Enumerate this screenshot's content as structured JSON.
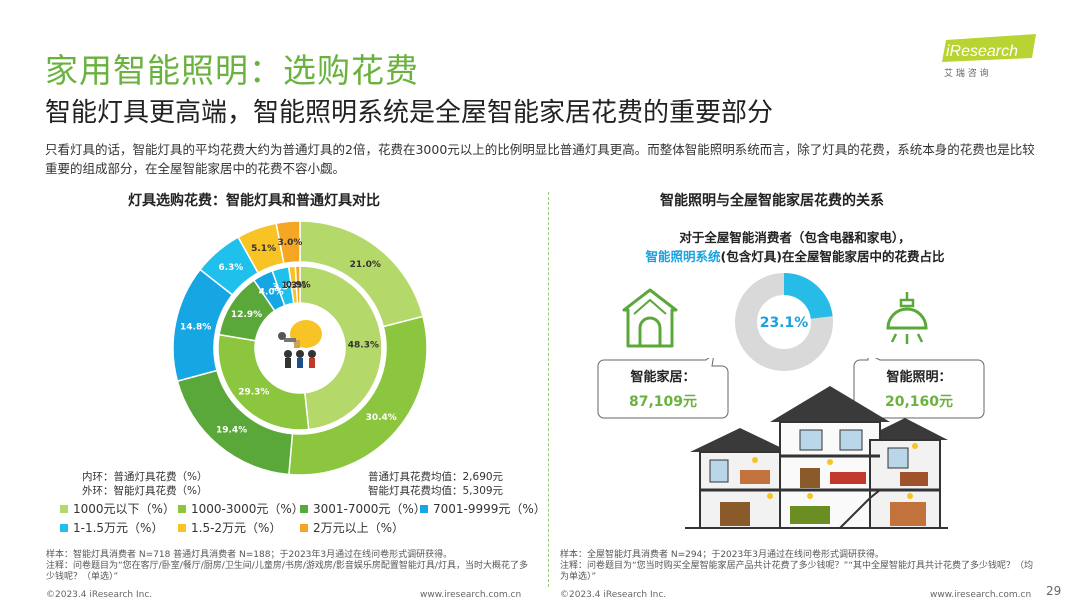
{
  "header": {
    "title": "家用智能照明：选购花费",
    "subtitle": "智能灯具更高端，智能照明系统是全屋智能家居花费的重要部分",
    "intro": "只看灯具的话，智能灯具的平均花费大约为普通灯具的2倍，花费在3000元以上的比例明显比普通灯具更高。而整体智能照明系统而言，除了灯具的花费，系统本身的花费也是比较重要的组成部分，在全屋智能家居中的花费不容小觑。"
  },
  "logo": {
    "brand": "iResearch",
    "cn": "艾  瑞  咨  询"
  },
  "left": {
    "section_title": "灯具选购花费：智能灯具和普通灯具对比",
    "ring_note_inner": "内环：普通灯具花费（%）",
    "ring_note_outer": "外环：智能灯具花费（%）",
    "avg_normal": "普通灯具花费均值：2,690元",
    "avg_smart": "智能灯具花费均值：5,309元",
    "legend": [
      {
        "label": "1000元以下（%）",
        "color": "#b5d86a"
      },
      {
        "label": "1000-3000元（%）",
        "color": "#8cc63f"
      },
      {
        "label": "3001-7000元（%）",
        "color": "#5aa83a"
      },
      {
        "label": "7001-9999元（%）",
        "color": "#16a6e3"
      },
      {
        "label": "1-1.5万元（%）",
        "color": "#1fc0ec"
      },
      {
        "label": "1.5-2万元（%）",
        "color": "#f7c325"
      },
      {
        "label": "2万元以上（%）",
        "color": "#f5a623"
      }
    ],
    "footnote_sample": "样本：智能灯具消费者 N=718  普通灯具消费者 N=188；于2023年3月通过在线问卷形式调研获得。",
    "footnote_note": "注释：问卷题目为“您在客厅/卧室/餐厅/厨房/卫生间/儿童房/书房/游戏房/影音娱乐房配置智能灯具/灯具，当时大概花了多少钱呢？（单选）”",
    "copyright": "©2023.4 iResearch Inc.",
    "url": "www.iresearch.com.cn"
  },
  "chart_data": {
    "type": "pie",
    "title": "灯具选购花费：智能灯具和普通灯具对比",
    "categories": [
      "1000元以下",
      "1000-3000元",
      "3001-7000元",
      "7001-9999元",
      "1-1.5万元",
      "1.5-2万元",
      "2万元以上"
    ],
    "series": [
      {
        "name": "智能灯具花费",
        "ring": "outer",
        "values": [
          21.0,
          30.4,
          19.4,
          14.8,
          6.3,
          5.1,
          3.0
        ]
      },
      {
        "name": "普通灯具花费",
        "ring": "inner",
        "values": [
          48.3,
          29.3,
          12.9,
          4.0,
          3.3,
          1.3,
          0.9
        ]
      }
    ],
    "colors": [
      "#b5d86a",
      "#8cc63f",
      "#5aa83a",
      "#16a6e3",
      "#1fc0ec",
      "#f7c325",
      "#f5a623"
    ],
    "unit": "%"
  },
  "right": {
    "section_title": "智能照明与全屋智能家居花费的关系",
    "desc_line1": "对于全屋智能消费者（包含电器和家电），",
    "desc_highlight": "智能照明系统",
    "desc_line2_rest": "(包含灯具)在全屋智能家居中的花费占比",
    "share_pct": "23.1%",
    "share_value": 23.1,
    "home_label": "智能家居：",
    "home_value": "87,109元",
    "light_label": "智能照明：",
    "light_value": "20,160元",
    "footnote_sample": "样本：全屋智能灯具消费者 N=294；于2023年3月通过在线问卷形式调研获得。",
    "footnote_note": "注释：问卷题目为“您当时购买全屋智能家居产品共计花费了多少钱呢？”“其中全屋智能灯具共计花费了多少钱呢？（均为单选）”",
    "copyright": "©2023.4 iResearch Inc.",
    "url": "www.iresearch.com.cn"
  },
  "page_number": "29"
}
